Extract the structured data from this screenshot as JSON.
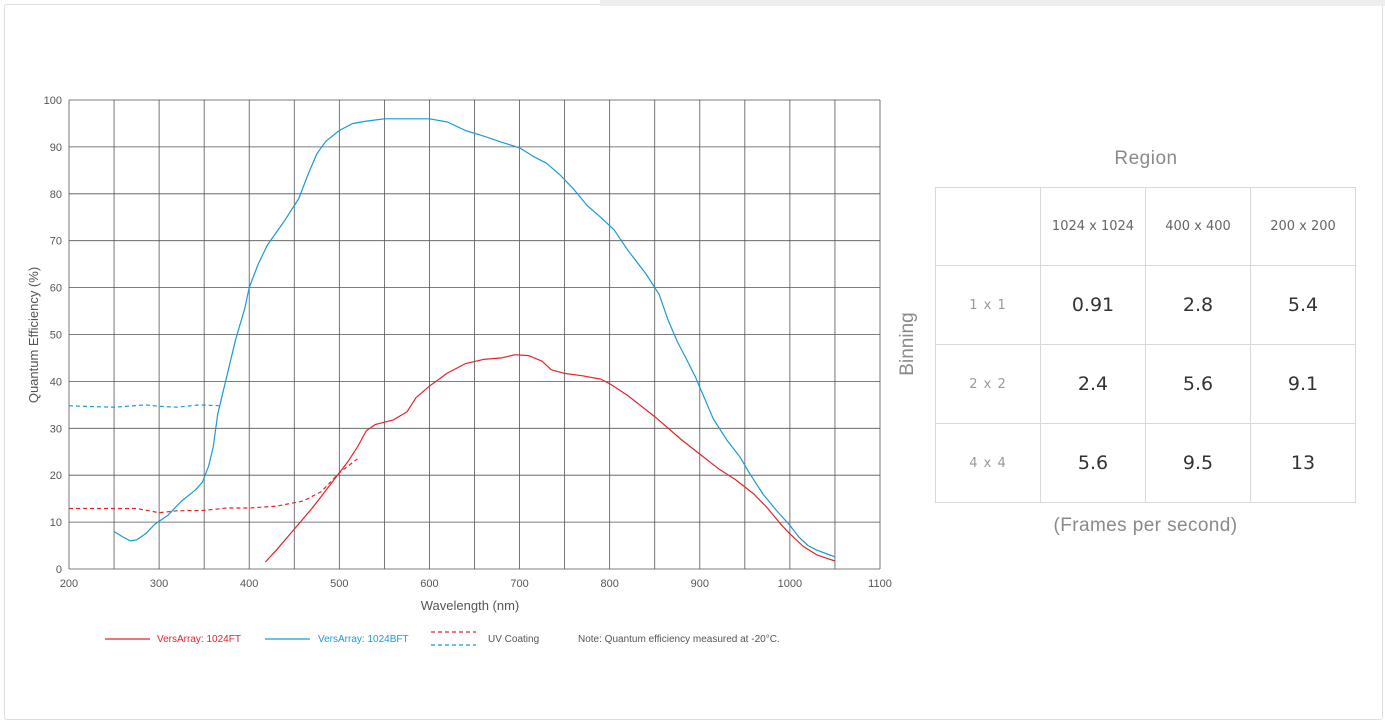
{
  "chart_data": {
    "type": "line",
    "xlabel": "Wavelength (nm)",
    "ylabel": "Quantum Efficiency  (%)",
    "xlim": [
      200,
      1100
    ],
    "ylim": [
      0,
      100
    ],
    "x_ticks": [
      "200",
      "300",
      "400",
      "500",
      "600",
      "700",
      "800",
      "900",
      "1000",
      "1100"
    ],
    "y_ticks": [
      "0",
      "10",
      "20",
      "30",
      "40",
      "50",
      "60",
      "70",
      "80",
      "90",
      "100"
    ],
    "grid": true,
    "series": [
      {
        "name": "VersArray: 1024FT",
        "color": "#e3242b",
        "dash": false,
        "points": [
          [
            418,
            1.5
          ],
          [
            430,
            4
          ],
          [
            450,
            8.5
          ],
          [
            470,
            13
          ],
          [
            490,
            18
          ],
          [
            510,
            23
          ],
          [
            520,
            26
          ],
          [
            530,
            29.5
          ],
          [
            540,
            30.8
          ],
          [
            550,
            31.3
          ],
          [
            560,
            31.8
          ],
          [
            575,
            33.5
          ],
          [
            585,
            36.5
          ],
          [
            600,
            39
          ],
          [
            620,
            41.8
          ],
          [
            640,
            43.8
          ],
          [
            660,
            44.7
          ],
          [
            680,
            45
          ],
          [
            695,
            45.7
          ],
          [
            710,
            45.5
          ],
          [
            725,
            44.3
          ],
          [
            735,
            42.5
          ],
          [
            750,
            41.7
          ],
          [
            770,
            41.2
          ],
          [
            790,
            40.5
          ],
          [
            800,
            39.5
          ],
          [
            820,
            37
          ],
          [
            850,
            32.5
          ],
          [
            880,
            27.5
          ],
          [
            900,
            24.5
          ],
          [
            920,
            21.5
          ],
          [
            940,
            19
          ],
          [
            960,
            16
          ],
          [
            975,
            13
          ],
          [
            990,
            9.5
          ],
          [
            1000,
            7.5
          ],
          [
            1015,
            4.8
          ],
          [
            1030,
            3
          ],
          [
            1050,
            1.7
          ]
        ]
      },
      {
        "name": "VersArray: 1024BFT",
        "color": "#1b9ad6",
        "dash": false,
        "points": [
          [
            250,
            8
          ],
          [
            260,
            6.8
          ],
          [
            268,
            6
          ],
          [
            275,
            6.2
          ],
          [
            285,
            7.5
          ],
          [
            295,
            9.5
          ],
          [
            310,
            11.5
          ],
          [
            325,
            14.5
          ],
          [
            340,
            16.8
          ],
          [
            348,
            18.5
          ],
          [
            355,
            22
          ],
          [
            360,
            26
          ],
          [
            365,
            33
          ],
          [
            375,
            41
          ],
          [
            385,
            49
          ],
          [
            395,
            55.5
          ],
          [
            400,
            60
          ],
          [
            410,
            65
          ],
          [
            420,
            69
          ],
          [
            440,
            74.5
          ],
          [
            455,
            79
          ],
          [
            465,
            84
          ],
          [
            475,
            88.5
          ],
          [
            485,
            91.2
          ],
          [
            500,
            93.5
          ],
          [
            515,
            95
          ],
          [
            530,
            95.5
          ],
          [
            550,
            96
          ],
          [
            600,
            96
          ],
          [
            620,
            95.3
          ],
          [
            640,
            93.5
          ],
          [
            660,
            92.3
          ],
          [
            680,
            91
          ],
          [
            700,
            89.8
          ],
          [
            715,
            88
          ],
          [
            730,
            86.5
          ],
          [
            745,
            84
          ],
          [
            760,
            81
          ],
          [
            775,
            77.5
          ],
          [
            790,
            75
          ],
          [
            805,
            72.3
          ],
          [
            820,
            68
          ],
          [
            840,
            63
          ],
          [
            855,
            58.5
          ],
          [
            865,
            53
          ],
          [
            875,
            48.5
          ],
          [
            885,
            44.8
          ],
          [
            895,
            41
          ],
          [
            905,
            36.5
          ],
          [
            915,
            32
          ],
          [
            930,
            27.5
          ],
          [
            945,
            23.8
          ],
          [
            955,
            20.5
          ],
          [
            970,
            16
          ],
          [
            985,
            12.5
          ],
          [
            1000,
            9.3
          ],
          [
            1010,
            6.8
          ],
          [
            1020,
            5
          ],
          [
            1030,
            4
          ],
          [
            1040,
            3.3
          ],
          [
            1050,
            2.6
          ]
        ]
      },
      {
        "name": "UV Coating",
        "color": "#e3242b",
        "dash": true,
        "points": [
          [
            200,
            12.9
          ],
          [
            240,
            12.9
          ],
          [
            275,
            12.9
          ],
          [
            300,
            12
          ],
          [
            320,
            12.4
          ],
          [
            350,
            12.5
          ],
          [
            375,
            13
          ],
          [
            400,
            13
          ],
          [
            430,
            13.4
          ],
          [
            460,
            14.5
          ],
          [
            480,
            16.5
          ],
          [
            500,
            20.5
          ],
          [
            520,
            23.5
          ]
        ]
      },
      {
        "name": "UV Coating",
        "color": "#1b9ad6",
        "dash": true,
        "points": [
          [
            200,
            34.8
          ],
          [
            230,
            34.6
          ],
          [
            250,
            34.5
          ],
          [
            285,
            35
          ],
          [
            300,
            34.7
          ],
          [
            320,
            34.5
          ],
          [
            345,
            35
          ],
          [
            370,
            34.8
          ]
        ]
      }
    ],
    "legend": {
      "placement": "bottom",
      "items": [
        {
          "label": "VersArray: 1024FT",
          "color": "#e3242b",
          "style": "solid"
        },
        {
          "label": "VersArray: 1024BFT",
          "color": "#1b9ad6",
          "style": "solid"
        },
        {
          "label": "UV Coating",
          "color": "#e3242b",
          "color2": "#1b9ad6",
          "style": "dashed-pair"
        }
      ],
      "note": "Note: Quantum efficiency measured at -20°C."
    }
  },
  "table": {
    "title": "Region",
    "side_label": "Binning",
    "caption": "(Frames per second)",
    "columns": [
      "1024 x 1024",
      "400 x 400",
      "200 x 200"
    ],
    "rows": [
      {
        "label": "1 x 1",
        "values": [
          "0.91",
          "2.8",
          "5.4"
        ]
      },
      {
        "label": "2 x 2",
        "values": [
          "2.4",
          "5.6",
          "9.1"
        ]
      },
      {
        "label": "4 x 4",
        "values": [
          "5.6",
          "9.5",
          "13"
        ]
      }
    ]
  },
  "colors": {
    "grid": "#555555",
    "red": "#e3242b",
    "blue": "#1b9ad6",
    "table_border": "#d9d9d9",
    "muted_text": "#8a8a8a"
  }
}
